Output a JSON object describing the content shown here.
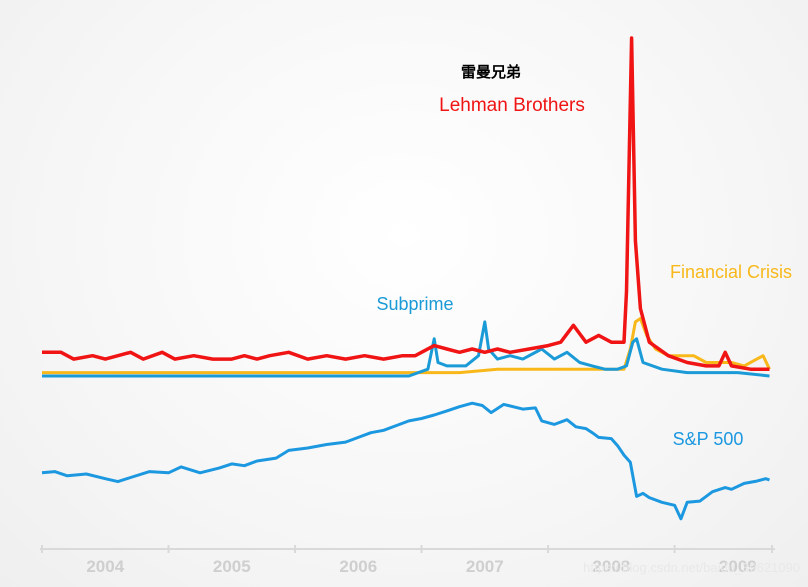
{
  "chart_data": {
    "type": "line",
    "title": "",
    "annotation_cn": "雷曼兄弟",
    "xlabel": "",
    "ylabel": "",
    "x_ticks": [
      "2004",
      "2005",
      "2006",
      "2007",
      "2008",
      "2009"
    ],
    "colors": {
      "lehman": "#f01414",
      "financial": "#f8b81a",
      "subprime": "#1a9ad6",
      "sp500": "#1c98e0"
    },
    "series": [
      {
        "name": "Lehman Brothers",
        "key": "lehman",
        "values": [
          [
            2003.5,
            7
          ],
          [
            2003.65,
            7
          ],
          [
            2003.75,
            5
          ],
          [
            2003.9,
            6
          ],
          [
            2004.0,
            5
          ],
          [
            2004.1,
            6
          ],
          [
            2004.2,
            7
          ],
          [
            2004.3,
            5
          ],
          [
            2004.45,
            7
          ],
          [
            2004.55,
            5
          ],
          [
            2004.7,
            6
          ],
          [
            2004.85,
            5
          ],
          [
            2005.0,
            5
          ],
          [
            2005.1,
            6
          ],
          [
            2005.2,
            5
          ],
          [
            2005.3,
            6
          ],
          [
            2005.45,
            7
          ],
          [
            2005.6,
            5
          ],
          [
            2005.75,
            6
          ],
          [
            2005.9,
            5
          ],
          [
            2006.05,
            6
          ],
          [
            2006.2,
            5
          ],
          [
            2006.35,
            6
          ],
          [
            2006.45,
            6
          ],
          [
            2006.6,
            9
          ],
          [
            2006.7,
            8
          ],
          [
            2006.8,
            7
          ],
          [
            2006.9,
            8
          ],
          [
            2007.0,
            7
          ],
          [
            2007.1,
            8
          ],
          [
            2007.2,
            7
          ],
          [
            2007.35,
            8
          ],
          [
            2007.5,
            9
          ],
          [
            2007.6,
            10
          ],
          [
            2007.7,
            15
          ],
          [
            2007.8,
            10
          ],
          [
            2007.9,
            12
          ],
          [
            2008.0,
            10
          ],
          [
            2008.1,
            10
          ],
          [
            2008.12,
            25
          ],
          [
            2008.16,
            100
          ],
          [
            2008.19,
            40
          ],
          [
            2008.23,
            20
          ],
          [
            2008.3,
            10
          ],
          [
            2008.45,
            6
          ],
          [
            2008.6,
            4
          ],
          [
            2008.75,
            3
          ],
          [
            2008.85,
            3
          ],
          [
            2008.9,
            7
          ],
          [
            2008.95,
            3
          ],
          [
            2009.1,
            2
          ],
          [
            2009.25,
            2
          ]
        ]
      },
      {
        "name": "Financial Crisis",
        "key": "financial",
        "values": [
          [
            2003.5,
            1
          ],
          [
            2003.8,
            1
          ],
          [
            2004.1,
            1
          ],
          [
            2004.4,
            1
          ],
          [
            2004.7,
            1
          ],
          [
            2005.0,
            1
          ],
          [
            2005.3,
            1
          ],
          [
            2005.6,
            1
          ],
          [
            2005.9,
            1
          ],
          [
            2006.2,
            1
          ],
          [
            2006.5,
            1
          ],
          [
            2006.8,
            1
          ],
          [
            2007.1,
            2
          ],
          [
            2007.4,
            2
          ],
          [
            2007.7,
            2
          ],
          [
            2008.0,
            2
          ],
          [
            2008.1,
            2
          ],
          [
            2008.15,
            8
          ],
          [
            2008.19,
            16
          ],
          [
            2008.23,
            17
          ],
          [
            2008.28,
            12
          ],
          [
            2008.35,
            8
          ],
          [
            2008.45,
            6
          ],
          [
            2008.55,
            6
          ],
          [
            2008.65,
            6
          ],
          [
            2008.75,
            4
          ],
          [
            2008.85,
            4
          ],
          [
            2008.95,
            4
          ],
          [
            2009.05,
            3
          ],
          [
            2009.15,
            5
          ],
          [
            2009.2,
            6
          ],
          [
            2009.25,
            2
          ]
        ]
      },
      {
        "name": "Subprime",
        "key": "subprime",
        "values": [
          [
            2003.5,
            0
          ],
          [
            2003.8,
            0
          ],
          [
            2004.1,
            0
          ],
          [
            2004.4,
            0
          ],
          [
            2004.7,
            0
          ],
          [
            2005.0,
            0
          ],
          [
            2005.3,
            0
          ],
          [
            2005.6,
            0
          ],
          [
            2005.9,
            0
          ],
          [
            2006.2,
            0
          ],
          [
            2006.4,
            0
          ],
          [
            2006.55,
            2
          ],
          [
            2006.6,
            11
          ],
          [
            2006.63,
            4
          ],
          [
            2006.7,
            3
          ],
          [
            2006.85,
            3
          ],
          [
            2006.95,
            6
          ],
          [
            2007.0,
            16
          ],
          [
            2007.03,
            8
          ],
          [
            2007.1,
            5
          ],
          [
            2007.2,
            6
          ],
          [
            2007.3,
            5
          ],
          [
            2007.45,
            8
          ],
          [
            2007.55,
            5
          ],
          [
            2007.65,
            7
          ],
          [
            2007.75,
            4
          ],
          [
            2007.85,
            3
          ],
          [
            2007.95,
            2
          ],
          [
            2008.05,
            2
          ],
          [
            2008.12,
            3
          ],
          [
            2008.17,
            10
          ],
          [
            2008.2,
            11
          ],
          [
            2008.25,
            4
          ],
          [
            2008.4,
            2
          ],
          [
            2008.6,
            1
          ],
          [
            2008.8,
            1
          ],
          [
            2009.0,
            1
          ],
          [
            2009.25,
            0
          ]
        ]
      },
      {
        "name": "S&P 500",
        "key": "sp500",
        "values": [
          [
            2003.5,
            1010
          ],
          [
            2003.6,
            1012
          ],
          [
            2003.7,
            1005
          ],
          [
            2003.85,
            1008
          ],
          [
            2004.0,
            1000
          ],
          [
            2004.1,
            995
          ],
          [
            2004.2,
            1002
          ],
          [
            2004.35,
            1012
          ],
          [
            2004.5,
            1010
          ],
          [
            2004.6,
            1020
          ],
          [
            2004.75,
            1010
          ],
          [
            2004.9,
            1018
          ],
          [
            2005.0,
            1025
          ],
          [
            2005.1,
            1022
          ],
          [
            2005.2,
            1030
          ],
          [
            2005.35,
            1035
          ],
          [
            2005.45,
            1048
          ],
          [
            2005.6,
            1052
          ],
          [
            2005.75,
            1058
          ],
          [
            2005.9,
            1062
          ],
          [
            2006.0,
            1070
          ],
          [
            2006.1,
            1078
          ],
          [
            2006.2,
            1082
          ],
          [
            2006.3,
            1090
          ],
          [
            2006.4,
            1098
          ],
          [
            2006.5,
            1102
          ],
          [
            2006.6,
            1108
          ],
          [
            2006.7,
            1115
          ],
          [
            2006.8,
            1122
          ],
          [
            2006.9,
            1128
          ],
          [
            2006.98,
            1124
          ],
          [
            2007.05,
            1112
          ],
          [
            2007.15,
            1126
          ],
          [
            2007.3,
            1118
          ],
          [
            2007.4,
            1120
          ],
          [
            2007.45,
            1098
          ],
          [
            2007.55,
            1092
          ],
          [
            2007.65,
            1100
          ],
          [
            2007.72,
            1088
          ],
          [
            2007.8,
            1085
          ],
          [
            2007.85,
            1078
          ],
          [
            2007.9,
            1070
          ],
          [
            2008.0,
            1068
          ],
          [
            2008.05,
            1056
          ],
          [
            2008.1,
            1040
          ],
          [
            2008.15,
            1028
          ],
          [
            2008.2,
            970
          ],
          [
            2008.25,
            975
          ],
          [
            2008.3,
            968
          ],
          [
            2008.4,
            960
          ],
          [
            2008.5,
            955
          ],
          [
            2008.55,
            932
          ],
          [
            2008.6,
            960
          ],
          [
            2008.7,
            962
          ],
          [
            2008.8,
            978
          ],
          [
            2008.9,
            985
          ],
          [
            2008.95,
            982
          ],
          [
            2009.05,
            992
          ],
          [
            2009.15,
            996
          ],
          [
            2009.22,
            1000
          ],
          [
            2009.25,
            998
          ]
        ]
      }
    ],
    "labels": {
      "lehman": "Lehman Brothers",
      "financial": "Financial Crisis",
      "subprime": "Subprime",
      "sp500": "S&P 500"
    },
    "watermark": "https://blog.csdn.net/baidu_39621090"
  }
}
